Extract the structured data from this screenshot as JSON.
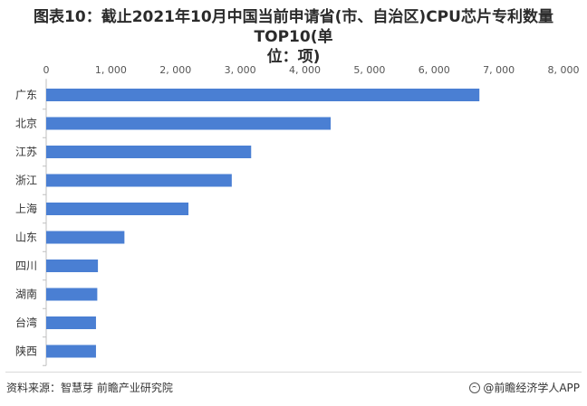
{
  "title_line1": "图表10：截止2021年10月中国当前申请省(市、自治区)CPU芯片专利数量TOP10(单",
  "title_line2": "位：项)",
  "source": "资料来源：智慧芽 前瞻产业研究院",
  "brand": "@前瞻经济学人APP",
  "colors": {
    "bar": "#4a7fd3",
    "grid": "#e6e6e6"
  },
  "chart_data": {
    "type": "bar",
    "orientation": "horizontal",
    "categories": [
      "广东",
      "北京",
      "江苏",
      "浙江",
      "上海",
      "山东",
      "四川",
      "湖南",
      "台湾",
      "陕西"
    ],
    "values": [
      6700,
      4400,
      3170,
      2870,
      2200,
      1210,
      800,
      790,
      770,
      770
    ],
    "xlim": [
      0,
      8000
    ],
    "xticks": [
      0,
      1000,
      2000,
      3000,
      4000,
      5000,
      6000,
      7000,
      8000
    ],
    "xtick_labels": [
      "0",
      "1, 000",
      "2, 000",
      "3, 000",
      "4, 000",
      "5, 000",
      "6, 000",
      "7, 000",
      "8, 000"
    ],
    "axis_position": "top",
    "grid": false,
    "legend": "none"
  }
}
